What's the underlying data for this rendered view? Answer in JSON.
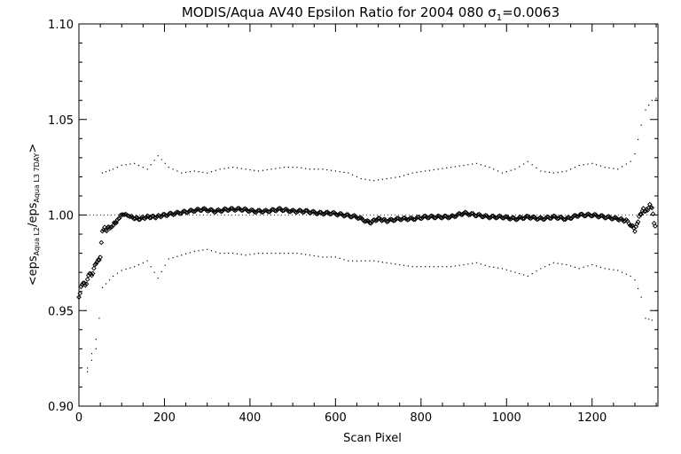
{
  "chart_data": {
    "type": "scatter",
    "title": "MODIS/Aqua AV40 Epsilon Ratio for 2004 080 σ",
    "title_subscript": "1",
    "title_suffix": "=0.0063",
    "xlabel": "Scan Pixel",
    "ylabel_parts": [
      "<eps",
      "Aqua L2",
      "/eps",
      "Aqua L3 7DAY",
      ">"
    ],
    "xlim": [
      0,
      1354
    ],
    "ylim": [
      0.9,
      1.1
    ],
    "xticks": [
      0,
      200,
      400,
      600,
      800,
      1000,
      1200
    ],
    "yticks": [
      0.9,
      0.95,
      1.0,
      1.05,
      1.1
    ],
    "xtick_labels": [
      "0",
      "200",
      "400",
      "600",
      "800",
      "1000",
      "1200"
    ],
    "ytick_labels": [
      "0.90",
      "0.95",
      "1.00",
      "1.05",
      "1.10"
    ],
    "reference_line": 1.0,
    "grid": false,
    "series": [
      {
        "role": "mean ratio",
        "marker": "diamond",
        "color": "#000000",
        "points": [
          [
            0,
            0.957
          ],
          [
            5,
            0.962
          ],
          [
            10,
            0.965
          ],
          [
            15,
            0.963
          ],
          [
            20,
            0.966
          ],
          [
            25,
            0.97
          ],
          [
            30,
            0.968
          ],
          [
            35,
            0.972
          ],
          [
            40,
            0.975
          ],
          [
            45,
            0.976
          ],
          [
            50,
            0.978
          ],
          [
            55,
            0.992
          ],
          [
            60,
            0.993
          ],
          [
            65,
            0.992
          ],
          [
            70,
            0.994
          ],
          [
            75,
            0.993
          ],
          [
            80,
            0.995
          ],
          [
            85,
            0.996
          ],
          [
            90,
            0.997
          ],
          [
            95,
            0.999
          ],
          [
            100,
            1.0
          ],
          [
            110,
            1.001
          ],
          [
            120,
            0.999
          ],
          [
            140,
            0.998
          ],
          [
            160,
            0.999
          ],
          [
            180,
            0.999
          ],
          [
            200,
            1.0
          ],
          [
            230,
            1.001
          ],
          [
            260,
            1.002
          ],
          [
            290,
            1.003
          ],
          [
            320,
            1.002
          ],
          [
            350,
            1.003
          ],
          [
            380,
            1.003
          ],
          [
            410,
            1.002
          ],
          [
            440,
            1.002
          ],
          [
            470,
            1.003
          ],
          [
            500,
            1.002
          ],
          [
            530,
            1.002
          ],
          [
            560,
            1.001
          ],
          [
            590,
            1.001
          ],
          [
            620,
            1.0
          ],
          [
            650,
            0.999
          ],
          [
            680,
            0.996
          ],
          [
            700,
            0.998
          ],
          [
            720,
            0.997
          ],
          [
            750,
            0.998
          ],
          [
            780,
            0.998
          ],
          [
            810,
            0.999
          ],
          [
            840,
            0.999
          ],
          [
            870,
            0.999
          ],
          [
            900,
            1.001
          ],
          [
            930,
            1.0
          ],
          [
            960,
            0.999
          ],
          [
            990,
            0.999
          ],
          [
            1020,
            0.998
          ],
          [
            1050,
            0.999
          ],
          [
            1080,
            0.998
          ],
          [
            1110,
            0.999
          ],
          [
            1140,
            0.998
          ],
          [
            1170,
            1.0
          ],
          [
            1200,
            1.0
          ],
          [
            1230,
            0.999
          ],
          [
            1260,
            0.998
          ],
          [
            1280,
            0.997
          ],
          [
            1295,
            0.994
          ],
          [
            1300,
            0.992
          ],
          [
            1305,
            0.995
          ],
          [
            1310,
            0.999
          ],
          [
            1315,
            1.001
          ],
          [
            1320,
            1.003
          ],
          [
            1325,
            1.002
          ],
          [
            1330,
            1.003
          ],
          [
            1335,
            1.005
          ],
          [
            1340,
            1.004
          ],
          [
            1345,
            0.996
          ],
          [
            1350,
            0.993
          ]
        ]
      },
      {
        "role": "upper envelope",
        "marker": "dot",
        "color": "#000000",
        "points": [
          [
            20,
            0.92
          ],
          [
            40,
            0.935
          ],
          [
            55,
            1.022
          ],
          [
            80,
            1.024
          ],
          [
            100,
            1.026
          ],
          [
            130,
            1.027
          ],
          [
            160,
            1.024
          ],
          [
            185,
            1.031
          ],
          [
            210,
            1.025
          ],
          [
            240,
            1.022
          ],
          [
            270,
            1.023
          ],
          [
            300,
            1.022
          ],
          [
            330,
            1.024
          ],
          [
            360,
            1.025
          ],
          [
            390,
            1.024
          ],
          [
            420,
            1.023
          ],
          [
            450,
            1.024
          ],
          [
            480,
            1.025
          ],
          [
            510,
            1.025
          ],
          [
            540,
            1.024
          ],
          [
            570,
            1.024
          ],
          [
            600,
            1.023
          ],
          [
            630,
            1.022
          ],
          [
            660,
            1.019
          ],
          [
            690,
            1.018
          ],
          [
            720,
            1.019
          ],
          [
            750,
            1.02
          ],
          [
            780,
            1.022
          ],
          [
            810,
            1.023
          ],
          [
            840,
            1.024
          ],
          [
            870,
            1.025
          ],
          [
            900,
            1.026
          ],
          [
            930,
            1.027
          ],
          [
            960,
            1.025
          ],
          [
            990,
            1.022
          ],
          [
            1020,
            1.024
          ],
          [
            1050,
            1.028
          ],
          [
            1080,
            1.023
          ],
          [
            1110,
            1.022
          ],
          [
            1140,
            1.023
          ],
          [
            1170,
            1.026
          ],
          [
            1200,
            1.027
          ],
          [
            1230,
            1.025
          ],
          [
            1260,
            1.024
          ],
          [
            1290,
            1.028
          ],
          [
            1300,
            1.032
          ],
          [
            1315,
            1.047
          ],
          [
            1325,
            1.055
          ],
          [
            1340,
            1.06
          ],
          [
            1350,
            1.061
          ]
        ]
      },
      {
        "role": "lower envelope",
        "marker": "dot",
        "color": "#000000",
        "points": [
          [
            20,
            0.918
          ],
          [
            40,
            0.93
          ],
          [
            55,
            0.962
          ],
          [
            80,
            0.968
          ],
          [
            100,
            0.971
          ],
          [
            130,
            0.973
          ],
          [
            160,
            0.976
          ],
          [
            185,
            0.967
          ],
          [
            210,
            0.977
          ],
          [
            240,
            0.979
          ],
          [
            270,
            0.981
          ],
          [
            300,
            0.982
          ],
          [
            330,
            0.98
          ],
          [
            360,
            0.98
          ],
          [
            390,
            0.979
          ],
          [
            420,
            0.98
          ],
          [
            450,
            0.98
          ],
          [
            480,
            0.98
          ],
          [
            510,
            0.98
          ],
          [
            540,
            0.979
          ],
          [
            570,
            0.978
          ],
          [
            600,
            0.978
          ],
          [
            630,
            0.976
          ],
          [
            660,
            0.976
          ],
          [
            690,
            0.976
          ],
          [
            720,
            0.975
          ],
          [
            750,
            0.974
          ],
          [
            780,
            0.973
          ],
          [
            810,
            0.973
          ],
          [
            840,
            0.973
          ],
          [
            870,
            0.973
          ],
          [
            900,
            0.974
          ],
          [
            930,
            0.975
          ],
          [
            960,
            0.973
          ],
          [
            990,
            0.972
          ],
          [
            1020,
            0.97
          ],
          [
            1050,
            0.968
          ],
          [
            1080,
            0.972
          ],
          [
            1110,
            0.975
          ],
          [
            1140,
            0.974
          ],
          [
            1170,
            0.972
          ],
          [
            1200,
            0.974
          ],
          [
            1230,
            0.972
          ],
          [
            1260,
            0.971
          ],
          [
            1290,
            0.968
          ],
          [
            1300,
            0.966
          ],
          [
            1315,
            0.957
          ],
          [
            1325,
            0.946
          ],
          [
            1340,
            0.945
          ],
          [
            1350,
            0.95
          ]
        ]
      }
    ]
  }
}
